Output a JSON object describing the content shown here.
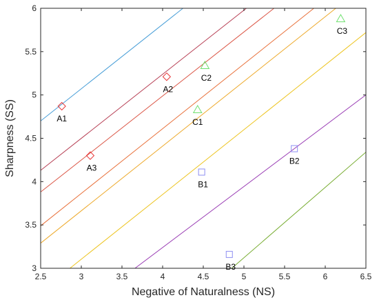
{
  "chart_data": {
    "type": "scatter",
    "xlabel": "Negative of Naturalness (NS)",
    "ylabel": "Sharpness (SS)",
    "xlim": [
      2.5,
      6.5
    ],
    "ylim": [
      3,
      6
    ],
    "x_ticks": [
      "2.5",
      "3",
      "3.5",
      "4",
      "4.5",
      "5",
      "5.5",
      "6",
      "6.5"
    ],
    "y_ticks": [
      "3",
      "3.5",
      "4",
      "4.5",
      "5",
      "5.5",
      "6"
    ],
    "grid": false,
    "colors": {
      "group_a": "#e8393b",
      "group_b": "#8d8ef2",
      "group_c": "#6fe06f",
      "axis": "#262626"
    },
    "lines": [
      {
        "color": "#4a9fd8",
        "x1": 2.5,
        "y1": 4.7,
        "x2": 4.25,
        "y2": 6.0
      },
      {
        "color": "#b74055",
        "x1": 2.5,
        "y1": 4.13,
        "x2": 5.03,
        "y2": 6.0
      },
      {
        "color": "#db5646",
        "x1": 2.5,
        "y1": 3.88,
        "x2": 5.37,
        "y2": 6.0
      },
      {
        "color": "#e8703a",
        "x1": 2.5,
        "y1": 3.49,
        "x2": 5.86,
        "y2": 6.0
      },
      {
        "color": "#eda92a",
        "x1": 2.5,
        "y1": 3.29,
        "x2": 6.13,
        "y2": 6.0
      },
      {
        "color": "#edc420",
        "x1": 2.86,
        "y1": 3.0,
        "x2": 6.5,
        "y2": 5.72
      },
      {
        "color": "#9b3fb5",
        "x1": 3.66,
        "y1": 3.0,
        "x2": 6.5,
        "y2": 5.0
      },
      {
        "color": "#77ac30",
        "x1": 4.85,
        "y1": 3.0,
        "x2": 6.5,
        "y2": 4.34
      }
    ],
    "points": [
      {
        "label": "A1",
        "marker": "diamond",
        "group": "group_a",
        "x": 2.76,
        "y": 4.87,
        "label_dx": 0,
        "label_dy": 22
      },
      {
        "label": "A2",
        "marker": "diamond",
        "group": "group_a",
        "x": 4.05,
        "y": 5.21,
        "label_dx": 2,
        "label_dy": 22
      },
      {
        "label": "A3",
        "marker": "diamond",
        "group": "group_a",
        "x": 3.11,
        "y": 4.3,
        "label_dx": 2,
        "label_dy": 22
      },
      {
        "label": "B1",
        "marker": "square",
        "group": "group_b",
        "x": 4.48,
        "y": 4.11,
        "label_dx": 2,
        "label_dy": 22
      },
      {
        "label": "B2",
        "marker": "square",
        "group": "group_b",
        "x": 5.62,
        "y": 4.38,
        "label_dx": 0,
        "label_dy": 22
      },
      {
        "label": "B3",
        "marker": "square",
        "group": "group_b",
        "x": 4.82,
        "y": 3.16,
        "label_dx": 2,
        "label_dy": 22
      },
      {
        "label": "C1",
        "marker": "triangle",
        "group": "group_c",
        "x": 4.43,
        "y": 4.83,
        "label_dx": 0,
        "label_dy": 22
      },
      {
        "label": "C2",
        "marker": "triangle",
        "group": "group_c",
        "x": 4.52,
        "y": 5.34,
        "label_dx": 2,
        "label_dy": 22
      },
      {
        "label": "C3",
        "marker": "triangle",
        "group": "group_c",
        "x": 6.19,
        "y": 5.88,
        "label_dx": 2,
        "label_dy": 22
      }
    ]
  }
}
